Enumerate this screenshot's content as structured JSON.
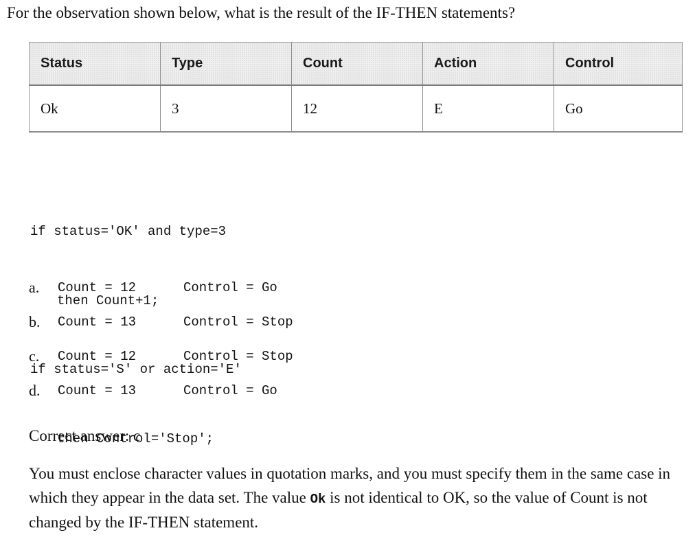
{
  "question": "For the observation shown below, what is the result of the IF-THEN statements?",
  "table": {
    "headers": [
      "Status",
      "Type",
      "Count",
      "Action",
      "Control"
    ],
    "row": [
      "Ok",
      "3",
      "12",
      "E",
      "Go"
    ]
  },
  "code": {
    "line1": "if status='OK' and type=3",
    "line2": "then Count+1;",
    "line3": "if status='S' or action='E'",
    "line4": "then Control='Stop';"
  },
  "options": [
    {
      "letter": "a.",
      "count": "Count = 12",
      "control": "Control = Go"
    },
    {
      "letter": "b.",
      "count": "Count = 13",
      "control": "Control = Stop"
    },
    {
      "letter": "c.",
      "count": "Count = 12",
      "control": "Control = Stop"
    },
    {
      "letter": "d.",
      "count": "Count = 13",
      "control": "Control = Go"
    }
  ],
  "answer": "Correct answer: c",
  "explanation": {
    "part1": "You must enclose character values in quotation marks, and you must specify them in the same case in which they appear in the data set. The value ",
    "code": "Ok",
    "part2": " is not identical to OK, so the value of Count is not changed by the IF-THEN statement."
  }
}
